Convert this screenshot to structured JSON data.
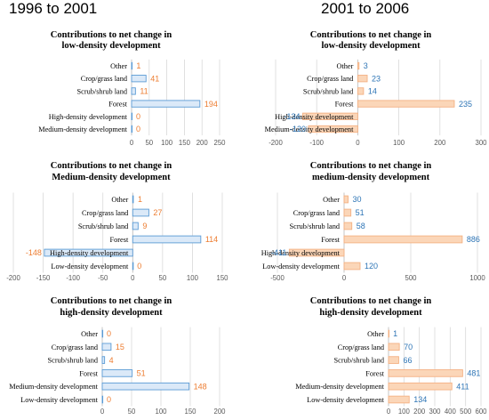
{
  "headers": {
    "left": "1996 to 2001",
    "right": "2001 to 2006"
  },
  "colors": {
    "blue_fill": "#dbe9f8",
    "blue_stroke": "#5b9bd5",
    "blue_label": "#2e75b6",
    "orange_fill": "#fbd6b8",
    "orange_stroke": "#f4b183",
    "orange_label": "#ed7d31"
  },
  "chart_data": [
    {
      "type": "bar",
      "orientation": "horizontal",
      "period": "1996 to 2001",
      "title": [
        "Contributions to net change in",
        "low-density development"
      ],
      "categories": [
        "Other",
        "Crop/grass land",
        "Scrub/shrub land",
        "Forest",
        "High-density development",
        "Medium-density development"
      ],
      "values": [
        1,
        41,
        11,
        194,
        0,
        0
      ],
      "xlim": [
        0,
        250
      ],
      "xticks": [
        0,
        50,
        100,
        150,
        200,
        250
      ],
      "bar_color": "blue",
      "label_color": "orange"
    },
    {
      "type": "bar",
      "orientation": "horizontal",
      "period": "2001 to 2006",
      "title": [
        "Contributions to net change in",
        "low-density development"
      ],
      "categories": [
        "Other",
        "Crop/grass land",
        "Scrub/shrub land",
        "Forest",
        "High-density development",
        "Medium-density development"
      ],
      "values": [
        3,
        23,
        14,
        235,
        -134,
        -120
      ],
      "xlim": [
        -200,
        300
      ],
      "xticks": [
        -200,
        -100,
        0,
        100,
        200,
        300
      ],
      "bar_color": "orange",
      "label_color": "blue"
    },
    {
      "type": "bar",
      "orientation": "horizontal",
      "period": "1996 to 2001",
      "title": [
        "Contributions to net change in",
        "Medium-density development"
      ],
      "categories": [
        "Other",
        "Crop/grass land",
        "Scrub/shrub land",
        "Forest",
        "High-density development",
        "Low-density development"
      ],
      "values": [
        1,
        27,
        9,
        114,
        -148,
        0
      ],
      "xlim": [
        -200,
        150
      ],
      "xticks": [
        -200,
        -150,
        -100,
        -50,
        0,
        50,
        100,
        150
      ],
      "bar_color": "blue",
      "label_color": "orange"
    },
    {
      "type": "bar",
      "orientation": "horizontal",
      "period": "2001 to 2006",
      "title": [
        "Contributions to net change in",
        "medium-density development"
      ],
      "categories": [
        "Other",
        "Crop/grass land",
        "Scrub/shrub land",
        "Forest",
        "High-density development",
        "Low-density development"
      ],
      "values": [
        30,
        51,
        58,
        886,
        -411,
        120
      ],
      "xlim": [
        -500,
        1000
      ],
      "xticks": [
        -500,
        0,
        500,
        1000
      ],
      "bar_color": "orange",
      "label_color": "blue"
    },
    {
      "type": "bar",
      "orientation": "horizontal",
      "period": "1996 to 2001",
      "title": [
        "Contributions to net change in",
        "high-density development"
      ],
      "categories": [
        "Other",
        "Crop/grass land",
        "Scrub/shrub land",
        "Forest",
        "Medium-density development",
        "Low-density development"
      ],
      "values": [
        0,
        15,
        4,
        51,
        148,
        0
      ],
      "xlim": [
        0,
        200
      ],
      "xticks": [
        0,
        50,
        100,
        150,
        200
      ],
      "bar_color": "blue",
      "label_color": "orange"
    },
    {
      "type": "bar",
      "orientation": "horizontal",
      "period": "2001 to 2006",
      "title": [
        "Contributions to net change in",
        "high-density development"
      ],
      "categories": [
        "Other",
        "Crop/grass land",
        "Scrub/shrub land",
        "Forest",
        "Medium-density development",
        "Low-density development"
      ],
      "values": [
        1,
        70,
        66,
        481,
        411,
        134
      ],
      "xlim": [
        0,
        600
      ],
      "xticks": [
        0,
        100,
        200,
        300,
        400,
        500,
        600
      ],
      "bar_color": "orange",
      "label_color": "blue"
    }
  ]
}
